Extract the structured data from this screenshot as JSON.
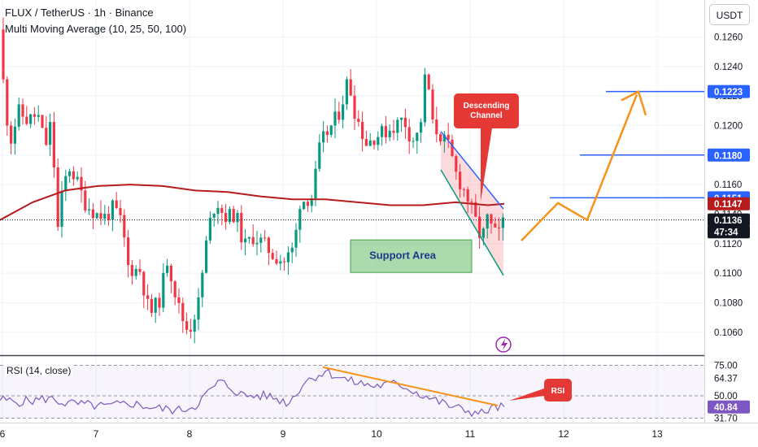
{
  "header": {
    "title": "FLUX / TetherUS · 1h · Binance",
    "indicator": "Multi Moving Average (10, 25, 50, 100)",
    "currency_button": "USDT"
  },
  "chart_data": {
    "type": "candlestick",
    "price_axis": {
      "ticks": [
        "0.1260",
        "0.1240",
        "0.1220",
        "0.1200",
        "0.1180",
        "0.1160",
        "0.1140",
        "0.1120",
        "0.1100",
        "0.1080",
        "0.1060"
      ],
      "ylim": [
        0.1045,
        0.1285
      ]
    },
    "time_axis": {
      "ticks": [
        "6",
        "7",
        "8",
        "9",
        "10",
        "11",
        "12",
        "13"
      ]
    },
    "price_labels": [
      {
        "text": "0.1223",
        "value": 0.1223,
        "color": "#2962ff",
        "kind": "target"
      },
      {
        "text": "0.1180",
        "value": 0.118,
        "color": "#2962ff",
        "kind": "target"
      },
      {
        "text": "0.1151",
        "value": 0.1151,
        "color": "#2962ff",
        "kind": "target"
      },
      {
        "text": "0.1147",
        "value": 0.1147,
        "color": "#b71c1c",
        "kind": "moving-average"
      },
      {
        "text": "0.1136",
        "value": 0.1136,
        "color": "#131722",
        "kind": "last-price"
      },
      {
        "text": "47:34",
        "value": 0.1128,
        "color": "#131722",
        "kind": "countdown"
      }
    ],
    "annotations": {
      "descending_channel": "Descending\nChannel",
      "support_area": "Support Area"
    },
    "rsi": {
      "title": "RSI (14, close)",
      "ticks": [
        "75.00",
        "50.00",
        "31.70"
      ],
      "ylim": [
        28,
        82
      ],
      "current_labels": [
        {
          "text": "64.37",
          "value": 64.37,
          "color": "#131722"
        },
        {
          "text": "40.84",
          "value": 40.84,
          "color": "#7e57c2"
        }
      ],
      "callout": "RSI"
    },
    "colors": {
      "up": "#089981",
      "down": "#f23645",
      "moving_average": "#b71c1c",
      "channel": "#2962ff",
      "arrow": "#f7931a",
      "rsi": "#7e57c2",
      "divergence": "#f7931a",
      "callout": "#e53935",
      "support": "#66bb6a"
    },
    "icons": [
      "usdt-button",
      "lightning-icon"
    ]
  }
}
